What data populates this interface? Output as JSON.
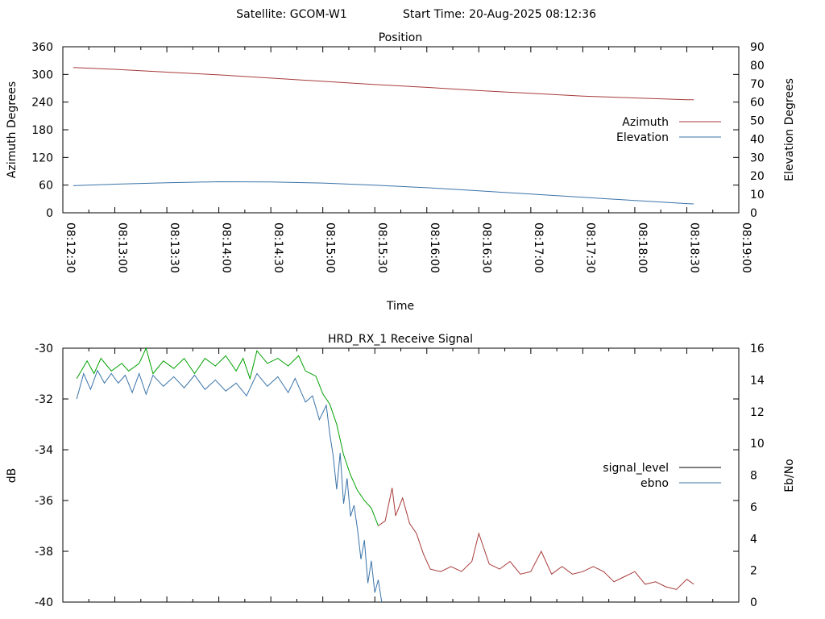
{
  "header": {
    "satellite": "Satellite: GCOM-W1",
    "start_time": "Start Time: 20-Aug-2025 08:12:36"
  },
  "chart_data": [
    {
      "type": "line",
      "title": "Position",
      "xlabel": "Time",
      "ylabel": "Azimuth Degrees",
      "y2label": "Elevation Degrees",
      "x_ticks": [
        "08:12:30",
        "08:13:00",
        "08:13:30",
        "08:14:00",
        "08:14:30",
        "08:15:00",
        "08:15:30",
        "08:16:00",
        "08:16:30",
        "08:17:00",
        "08:17:30",
        "08:18:00",
        "08:18:30",
        "08:19:00"
      ],
      "xlim": [
        "08:12:30",
        "08:19:00"
      ],
      "ylim": [
        0,
        360
      ],
      "y_ticks": [
        0,
        60,
        120,
        180,
        240,
        300,
        360
      ],
      "y2lim": [
        0,
        90
      ],
      "y2_ticks": [
        0,
        10,
        20,
        30,
        40,
        50,
        60,
        70,
        80,
        90
      ],
      "legend_position": "right",
      "grid": false,
      "series": [
        {
          "name": "Azimuth",
          "axis": "y",
          "color": "#a83a3a",
          "points": [
            [
              "08:12:36",
              315
            ],
            [
              "08:13:00",
              311
            ],
            [
              "08:13:30",
              305
            ],
            [
              "08:14:00",
              299
            ],
            [
              "08:14:30",
              292
            ],
            [
              "08:15:00",
              285
            ],
            [
              "08:15:30",
              278
            ],
            [
              "08:16:00",
              272
            ],
            [
              "08:16:30",
              265
            ],
            [
              "08:17:00",
              259
            ],
            [
              "08:17:30",
              253
            ],
            [
              "08:18:00",
              249
            ],
            [
              "08:18:30",
              245
            ],
            [
              "08:18:34",
              245
            ]
          ]
        },
        {
          "name": "Elevation",
          "axis": "y2",
          "color": "#3a73a8",
          "points": [
            [
              "08:12:36",
              14.7
            ],
            [
              "08:13:00",
              15.5
            ],
            [
              "08:13:30",
              16.3
            ],
            [
              "08:14:00",
              16.8
            ],
            [
              "08:14:30",
              16.7
            ],
            [
              "08:15:00",
              16.1
            ],
            [
              "08:15:30",
              15.0
            ],
            [
              "08:16:00",
              13.6
            ],
            [
              "08:16:30",
              11.9
            ],
            [
              "08:17:00",
              10.2
            ],
            [
              "08:17:30",
              8.4
            ],
            [
              "08:18:00",
              6.7
            ],
            [
              "08:18:30",
              5.0
            ],
            [
              "08:18:34",
              4.8
            ]
          ]
        }
      ]
    },
    {
      "type": "line",
      "title": "HRD_RX_1 Receive Signal",
      "ylabel": "dB",
      "y2label": "Eb/No",
      "xlim": [
        "08:12:30",
        "08:19:00"
      ],
      "ylim": [
        -40,
        -30
      ],
      "y_ticks": [
        -40,
        -38,
        -36,
        -34,
        -32,
        -30
      ],
      "y2lim": [
        0,
        16
      ],
      "y2_ticks": [
        0,
        2,
        4,
        6,
        8,
        10,
        12,
        14,
        16
      ],
      "legend_position": "right",
      "grid": false,
      "series": [
        {
          "name": "signal_level",
          "axis": "y",
          "legend_color": "#000000",
          "colors": {
            "high_segment": "#00a000",
            "low_segment": "#a83a3a"
          },
          "points": [
            [
              "08:12:38",
              -31.2
            ],
            [
              "08:12:44",
              -30.5
            ],
            [
              "08:12:48",
              -31.0
            ],
            [
              "08:12:52",
              -30.4
            ],
            [
              "08:12:58",
              -30.9
            ],
            [
              "08:13:04",
              -30.6
            ],
            [
              "08:13:08",
              -30.9
            ],
            [
              "08:13:14",
              -30.6
            ],
            [
              "08:13:18",
              -30.0
            ],
            [
              "08:13:22",
              -31.0
            ],
            [
              "08:13:28",
              -30.5
            ],
            [
              "08:13:34",
              -30.8
            ],
            [
              "08:13:40",
              -30.4
            ],
            [
              "08:13:46",
              -31.0
            ],
            [
              "08:13:52",
              -30.4
            ],
            [
              "08:13:58",
              -30.7
            ],
            [
              "08:14:04",
              -30.3
            ],
            [
              "08:14:10",
              -30.9
            ],
            [
              "08:14:14",
              -30.4
            ],
            [
              "08:14:18",
              -31.2
            ],
            [
              "08:14:22",
              -30.1
            ],
            [
              "08:14:28",
              -30.6
            ],
            [
              "08:14:34",
              -30.4
            ],
            [
              "08:14:40",
              -30.7
            ],
            [
              "08:14:46",
              -30.3
            ],
            [
              "08:14:50",
              -30.9
            ],
            [
              "08:14:56",
              -31.1
            ],
            [
              "08:15:00",
              -31.8
            ],
            [
              "08:15:04",
              -32.2
            ],
            [
              "08:15:08",
              -33.0
            ],
            [
              "08:15:12",
              -34.2
            ],
            [
              "08:15:16",
              -35.0
            ],
            [
              "08:15:20",
              -35.6
            ],
            [
              "08:15:24",
              -36.0
            ],
            [
              "08:15:28",
              -36.3
            ],
            [
              "08:15:32",
              -37.0
            ],
            [
              "08:15:36",
              -36.8
            ],
            [
              "08:15:40",
              -35.5
            ],
            [
              "08:15:42",
              -36.6
            ],
            [
              "08:15:46",
              -35.9
            ],
            [
              "08:15:50",
              -36.9
            ],
            [
              "08:15:54",
              -37.3
            ],
            [
              "08:15:58",
              -38.1
            ],
            [
              "08:16:02",
              -38.7
            ],
            [
              "08:16:08",
              -38.8
            ],
            [
              "08:16:14",
              -38.6
            ],
            [
              "08:16:20",
              -38.8
            ],
            [
              "08:16:26",
              -38.4
            ],
            [
              "08:16:30",
              -37.3
            ],
            [
              "08:16:36",
              -38.5
            ],
            [
              "08:16:42",
              -38.7
            ],
            [
              "08:16:48",
              -38.4
            ],
            [
              "08:16:54",
              -38.9
            ],
            [
              "08:17:00",
              -38.8
            ],
            [
              "08:17:06",
              -38.0
            ],
            [
              "08:17:12",
              -38.9
            ],
            [
              "08:17:18",
              -38.6
            ],
            [
              "08:17:24",
              -38.9
            ],
            [
              "08:17:30",
              -38.8
            ],
            [
              "08:17:36",
              -38.6
            ],
            [
              "08:17:42",
              -38.8
            ],
            [
              "08:17:48",
              -39.2
            ],
            [
              "08:17:54",
              -39.0
            ],
            [
              "08:18:00",
              -38.8
            ],
            [
              "08:18:06",
              -39.3
            ],
            [
              "08:18:12",
              -39.2
            ],
            [
              "08:18:18",
              -39.4
            ],
            [
              "08:18:24",
              -39.5
            ],
            [
              "08:18:30",
              -39.1
            ],
            [
              "08:18:34",
              -39.3
            ]
          ]
        },
        {
          "name": "ebno",
          "axis": "y2",
          "color": "#3a73a8",
          "points": [
            [
              "08:12:38",
              12.8
            ],
            [
              "08:12:42",
              14.4
            ],
            [
              "08:12:46",
              13.4
            ],
            [
              "08:12:50",
              14.6
            ],
            [
              "08:12:54",
              13.8
            ],
            [
              "08:12:58",
              14.4
            ],
            [
              "08:13:02",
              13.8
            ],
            [
              "08:13:06",
              14.3
            ],
            [
              "08:13:10",
              13.2
            ],
            [
              "08:13:14",
              14.4
            ],
            [
              "08:13:18",
              13.1
            ],
            [
              "08:13:22",
              14.3
            ],
            [
              "08:13:28",
              13.6
            ],
            [
              "08:13:34",
              14.2
            ],
            [
              "08:13:40",
              13.5
            ],
            [
              "08:13:46",
              14.3
            ],
            [
              "08:13:52",
              13.4
            ],
            [
              "08:13:58",
              14.0
            ],
            [
              "08:14:04",
              13.3
            ],
            [
              "08:14:10",
              13.8
            ],
            [
              "08:14:16",
              13.0
            ],
            [
              "08:14:22",
              14.4
            ],
            [
              "08:14:28",
              13.6
            ],
            [
              "08:14:34",
              14.2
            ],
            [
              "08:14:40",
              13.2
            ],
            [
              "08:14:44",
              14.1
            ],
            [
              "08:14:50",
              12.6
            ],
            [
              "08:14:54",
              13.0
            ],
            [
              "08:14:58",
              11.5
            ],
            [
              "08:15:02",
              12.4
            ],
            [
              "08:15:04",
              10.6
            ],
            [
              "08:15:06",
              9.2
            ],
            [
              "08:15:08",
              7.1
            ],
            [
              "08:15:10",
              9.4
            ],
            [
              "08:15:12",
              6.2
            ],
            [
              "08:15:14",
              7.8
            ],
            [
              "08:15:16",
              5.4
            ],
            [
              "08:15:18",
              6.1
            ],
            [
              "08:15:20",
              4.6
            ],
            [
              "08:15:22",
              2.7
            ],
            [
              "08:15:24",
              3.9
            ],
            [
              "08:15:26",
              1.2
            ],
            [
              "08:15:28",
              2.6
            ],
            [
              "08:15:30",
              0.6
            ],
            [
              "08:15:32",
              1.4
            ],
            [
              "08:15:34",
              0.0
            ]
          ]
        }
      ]
    }
  ]
}
